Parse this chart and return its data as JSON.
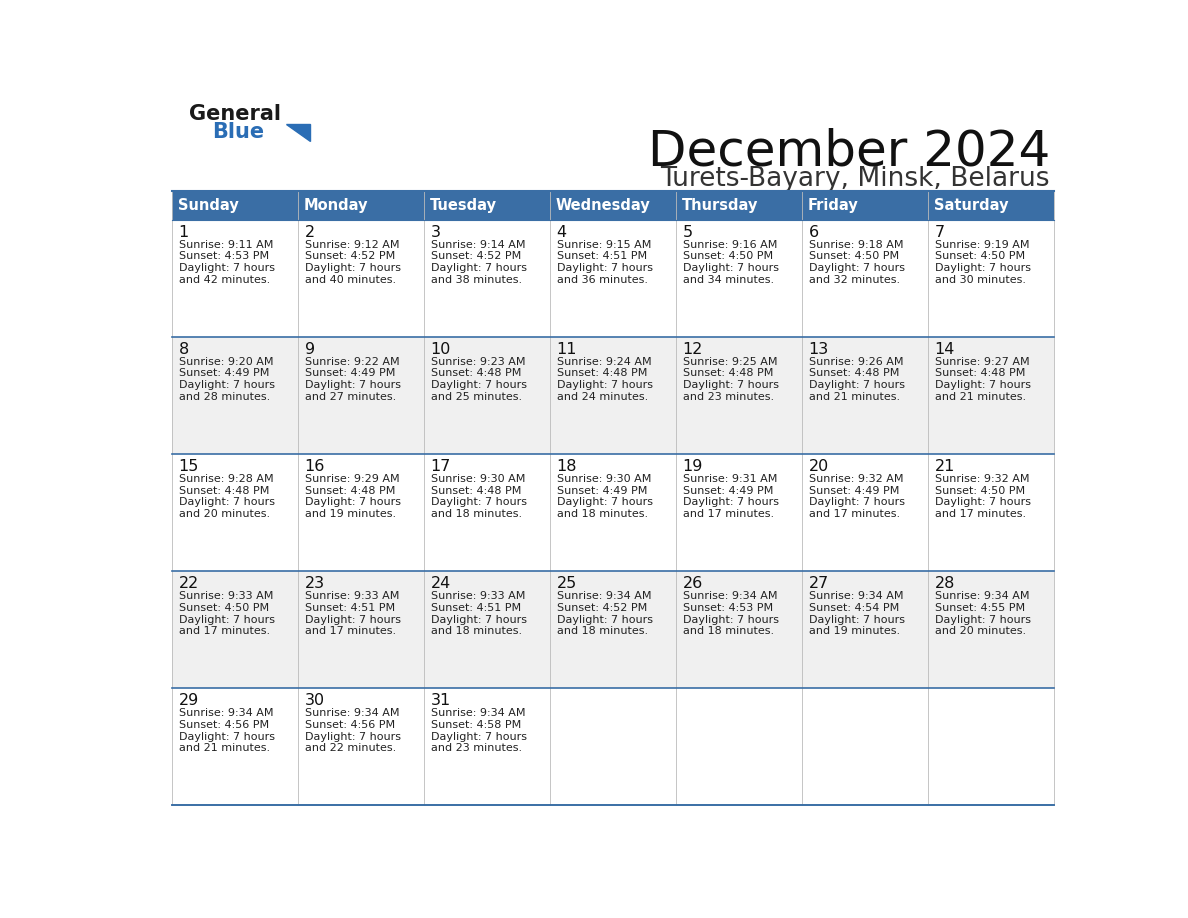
{
  "title": "December 2024",
  "subtitle": "Turets-Bayary, Minsk, Belarus",
  "header_color": "#3a6ea5",
  "header_text_color": "#ffffff",
  "day_names": [
    "Sunday",
    "Monday",
    "Tuesday",
    "Wednesday",
    "Thursday",
    "Friday",
    "Saturday"
  ],
  "bg_color": "#ffffff",
  "cell_bg_white": "#ffffff",
  "cell_bg_gray": "#f0f0f0",
  "row_border_color": "#3a6ea5",
  "col_border_color": "#c0c0c0",
  "text_color": "#222222",
  "logo_general_color": "#1a1a1a",
  "logo_blue_color": "#2a6db5",
  "calendar_data": [
    [
      {
        "day": 1,
        "sunrise": "9:11 AM",
        "sunset": "4:53 PM",
        "daylight_h": "7 hours",
        "daylight_m": "42 minutes."
      },
      {
        "day": 2,
        "sunrise": "9:12 AM",
        "sunset": "4:52 PM",
        "daylight_h": "7 hours",
        "daylight_m": "40 minutes."
      },
      {
        "day": 3,
        "sunrise": "9:14 AM",
        "sunset": "4:52 PM",
        "daylight_h": "7 hours",
        "daylight_m": "38 minutes."
      },
      {
        "day": 4,
        "sunrise": "9:15 AM",
        "sunset": "4:51 PM",
        "daylight_h": "7 hours",
        "daylight_m": "36 minutes."
      },
      {
        "day": 5,
        "sunrise": "9:16 AM",
        "sunset": "4:50 PM",
        "daylight_h": "7 hours",
        "daylight_m": "34 minutes."
      },
      {
        "day": 6,
        "sunrise": "9:18 AM",
        "sunset": "4:50 PM",
        "daylight_h": "7 hours",
        "daylight_m": "32 minutes."
      },
      {
        "day": 7,
        "sunrise": "9:19 AM",
        "sunset": "4:50 PM",
        "daylight_h": "7 hours",
        "daylight_m": "30 minutes."
      }
    ],
    [
      {
        "day": 8,
        "sunrise": "9:20 AM",
        "sunset": "4:49 PM",
        "daylight_h": "7 hours",
        "daylight_m": "28 minutes."
      },
      {
        "day": 9,
        "sunrise": "9:22 AM",
        "sunset": "4:49 PM",
        "daylight_h": "7 hours",
        "daylight_m": "27 minutes."
      },
      {
        "day": 10,
        "sunrise": "9:23 AM",
        "sunset": "4:48 PM",
        "daylight_h": "7 hours",
        "daylight_m": "25 minutes."
      },
      {
        "day": 11,
        "sunrise": "9:24 AM",
        "sunset": "4:48 PM",
        "daylight_h": "7 hours",
        "daylight_m": "24 minutes."
      },
      {
        "day": 12,
        "sunrise": "9:25 AM",
        "sunset": "4:48 PM",
        "daylight_h": "7 hours",
        "daylight_m": "23 minutes."
      },
      {
        "day": 13,
        "sunrise": "9:26 AM",
        "sunset": "4:48 PM",
        "daylight_h": "7 hours",
        "daylight_m": "21 minutes."
      },
      {
        "day": 14,
        "sunrise": "9:27 AM",
        "sunset": "4:48 PM",
        "daylight_h": "7 hours",
        "daylight_m": "21 minutes."
      }
    ],
    [
      {
        "day": 15,
        "sunrise": "9:28 AM",
        "sunset": "4:48 PM",
        "daylight_h": "7 hours",
        "daylight_m": "20 minutes."
      },
      {
        "day": 16,
        "sunrise": "9:29 AM",
        "sunset": "4:48 PM",
        "daylight_h": "7 hours",
        "daylight_m": "19 minutes."
      },
      {
        "day": 17,
        "sunrise": "9:30 AM",
        "sunset": "4:48 PM",
        "daylight_h": "7 hours",
        "daylight_m": "18 minutes."
      },
      {
        "day": 18,
        "sunrise": "9:30 AM",
        "sunset": "4:49 PM",
        "daylight_h": "7 hours",
        "daylight_m": "18 minutes."
      },
      {
        "day": 19,
        "sunrise": "9:31 AM",
        "sunset": "4:49 PM",
        "daylight_h": "7 hours",
        "daylight_m": "17 minutes."
      },
      {
        "day": 20,
        "sunrise": "9:32 AM",
        "sunset": "4:49 PM",
        "daylight_h": "7 hours",
        "daylight_m": "17 minutes."
      },
      {
        "day": 21,
        "sunrise": "9:32 AM",
        "sunset": "4:50 PM",
        "daylight_h": "7 hours",
        "daylight_m": "17 minutes."
      }
    ],
    [
      {
        "day": 22,
        "sunrise": "9:33 AM",
        "sunset": "4:50 PM",
        "daylight_h": "7 hours",
        "daylight_m": "17 minutes."
      },
      {
        "day": 23,
        "sunrise": "9:33 AM",
        "sunset": "4:51 PM",
        "daylight_h": "7 hours",
        "daylight_m": "17 minutes."
      },
      {
        "day": 24,
        "sunrise": "9:33 AM",
        "sunset": "4:51 PM",
        "daylight_h": "7 hours",
        "daylight_m": "18 minutes."
      },
      {
        "day": 25,
        "sunrise": "9:34 AM",
        "sunset": "4:52 PM",
        "daylight_h": "7 hours",
        "daylight_m": "18 minutes."
      },
      {
        "day": 26,
        "sunrise": "9:34 AM",
        "sunset": "4:53 PM",
        "daylight_h": "7 hours",
        "daylight_m": "18 minutes."
      },
      {
        "day": 27,
        "sunrise": "9:34 AM",
        "sunset": "4:54 PM",
        "daylight_h": "7 hours",
        "daylight_m": "19 minutes."
      },
      {
        "day": 28,
        "sunrise": "9:34 AM",
        "sunset": "4:55 PM",
        "daylight_h": "7 hours",
        "daylight_m": "20 minutes."
      }
    ],
    [
      {
        "day": 29,
        "sunrise": "9:34 AM",
        "sunset": "4:56 PM",
        "daylight_h": "7 hours",
        "daylight_m": "21 minutes."
      },
      {
        "day": 30,
        "sunrise": "9:34 AM",
        "sunset": "4:56 PM",
        "daylight_h": "7 hours",
        "daylight_m": "22 minutes."
      },
      {
        "day": 31,
        "sunrise": "9:34 AM",
        "sunset": "4:58 PM",
        "daylight_h": "7 hours",
        "daylight_m": "23 minutes."
      },
      null,
      null,
      null,
      null
    ]
  ],
  "num_rows": 5,
  "num_cols": 7,
  "fig_width": 11.88,
  "fig_height": 9.18,
  "dpi": 100
}
